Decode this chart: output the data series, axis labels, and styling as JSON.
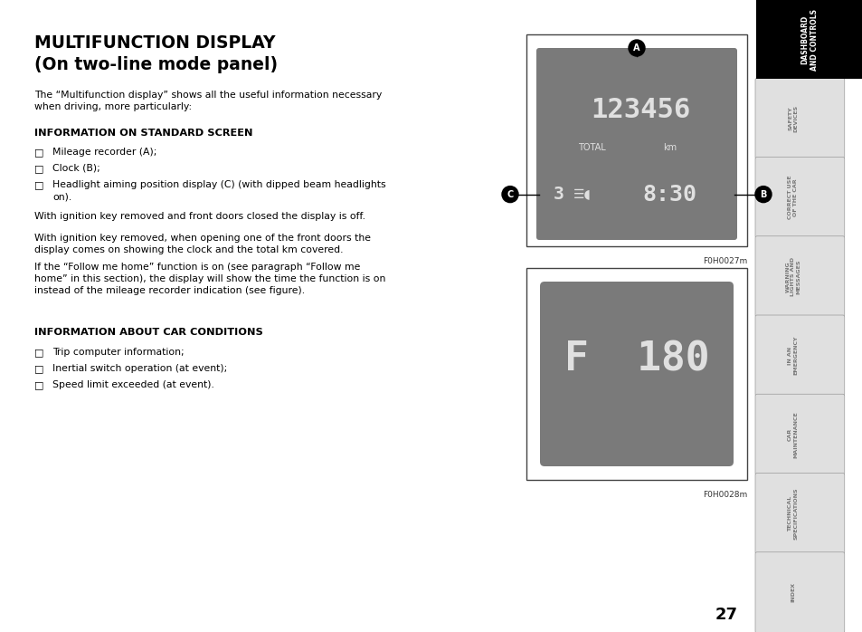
{
  "title_line1": "MULTIFUNCTION DISPLAY",
  "title_line2": "(On two-line mode panel)",
  "body_text": "The “Multifunction display” shows all the useful information necessary\nwhen driving, more particularly:",
  "section1_title": "INFORMATION ON STANDARD SCREEN",
  "section1_bullets": [
    "Mileage recorder (A);",
    "Clock (B);",
    "Headlight aiming position display (C) (with dipped beam headlights\non)."
  ],
  "para1": "With ignition key removed and front doors closed the display is off.",
  "para2": "With ignition key removed, when opening one of the front doors the\ndisplay comes on showing the clock and the total km covered.",
  "para3": "If the “Follow me home” function is on (see paragraph “Follow me\nhome” in this section), the display will show the time the function is on\ninstead of the mileage recorder indication (see figure).",
  "section2_title": "INFORMATION ABOUT CAR CONDITIONS",
  "section2_bullets": [
    "Trip computer information;",
    "Inertial switch operation (at event);",
    "Speed limit exceeded (at event)."
  ],
  "fig1_caption": "F0H0027m",
  "fig2_caption": "F0H0028m",
  "page_number": "27",
  "sidebar_tabs": [
    {
      "label": "DASHBOARD\nAND CONTROLS",
      "active": true
    },
    {
      "label": "SAFETY\nDEVICES",
      "active": false
    },
    {
      "label": "CORRECT USE\nOF THE CAR",
      "active": false
    },
    {
      "label": "WARNING\nLIGHTS AND\nMESSAGES",
      "active": false
    },
    {
      "label": "IN AN\nEMERGENCY",
      "active": false
    },
    {
      "label": "CAR\nMAINTENANCE",
      "active": false
    },
    {
      "label": "TECHNICAL\nSPECIFICATIONS",
      "active": false
    },
    {
      "label": "INDEX",
      "active": false
    }
  ],
  "display_bg": "#7a7a7a",
  "display_text_color": "#e0e0e0",
  "outer_bg": "#ffffff",
  "sidebar_active_bg": "#000000",
  "sidebar_active_text": "#ffffff",
  "sidebar_inactive_bg": "#e0e0e0",
  "sidebar_inactive_text": "#777777",
  "sidebar_border": "#999999",
  "fig_border": "#444444",
  "fig_outer_bg": "#ffffff"
}
